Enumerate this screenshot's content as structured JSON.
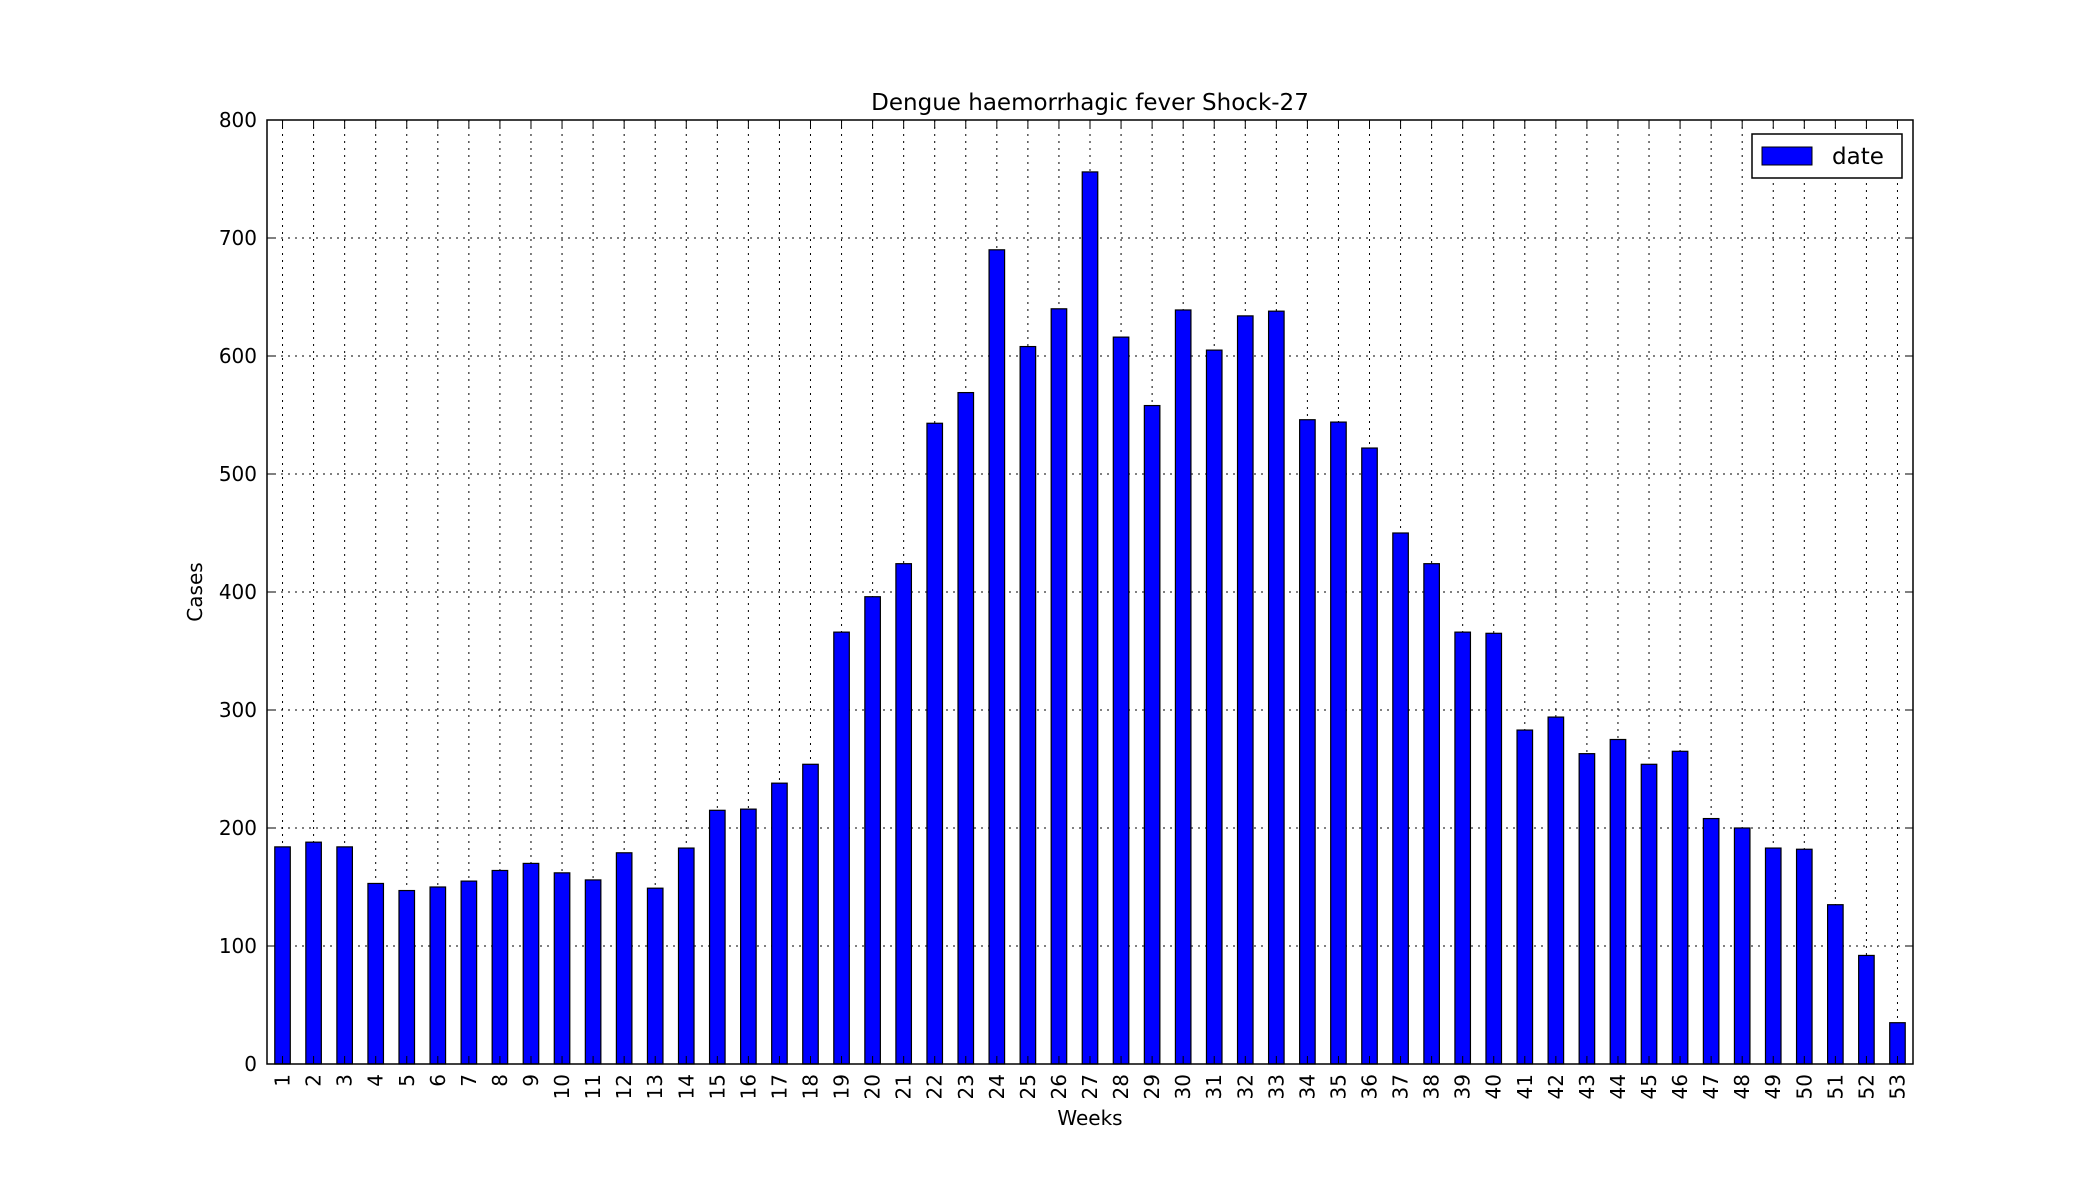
{
  "chart_data": {
    "type": "bar",
    "title": "Dengue haemorrhagic fever Shock-27",
    "xlabel": "Weeks",
    "ylabel": "Cases",
    "ylim": [
      0,
      800
    ],
    "yticks": [
      "0",
      "100",
      "200",
      "300",
      "400",
      "500",
      "600",
      "700",
      "800"
    ],
    "grid": true,
    "legend_position": "top-right",
    "categories": [
      "1",
      "2",
      "3",
      "4",
      "5",
      "6",
      "7",
      "8",
      "9",
      "10",
      "11",
      "12",
      "13",
      "14",
      "15",
      "16",
      "17",
      "18",
      "19",
      "20",
      "21",
      "22",
      "23",
      "24",
      "25",
      "26",
      "27",
      "28",
      "29",
      "30",
      "31",
      "32",
      "33",
      "34",
      "35",
      "36",
      "37",
      "38",
      "39",
      "40",
      "41",
      "42",
      "43",
      "44",
      "45",
      "46",
      "47",
      "48",
      "49",
      "50",
      "51",
      "52",
      "53"
    ],
    "series": [
      {
        "name": "date",
        "color": "#0000ff",
        "values": [
          184,
          188,
          184,
          153,
          147,
          150,
          155,
          164,
          170,
          162,
          156,
          179,
          149,
          183,
          215,
          216,
          238,
          254,
          366,
          396,
          424,
          543,
          569,
          690,
          608,
          640,
          756,
          616,
          558,
          639,
          605,
          634,
          638,
          546,
          544,
          522,
          450,
          424,
          366,
          365,
          283,
          294,
          263,
          275,
          254,
          265,
          208,
          200,
          183,
          182,
          135,
          92,
          35
        ]
      }
    ]
  }
}
